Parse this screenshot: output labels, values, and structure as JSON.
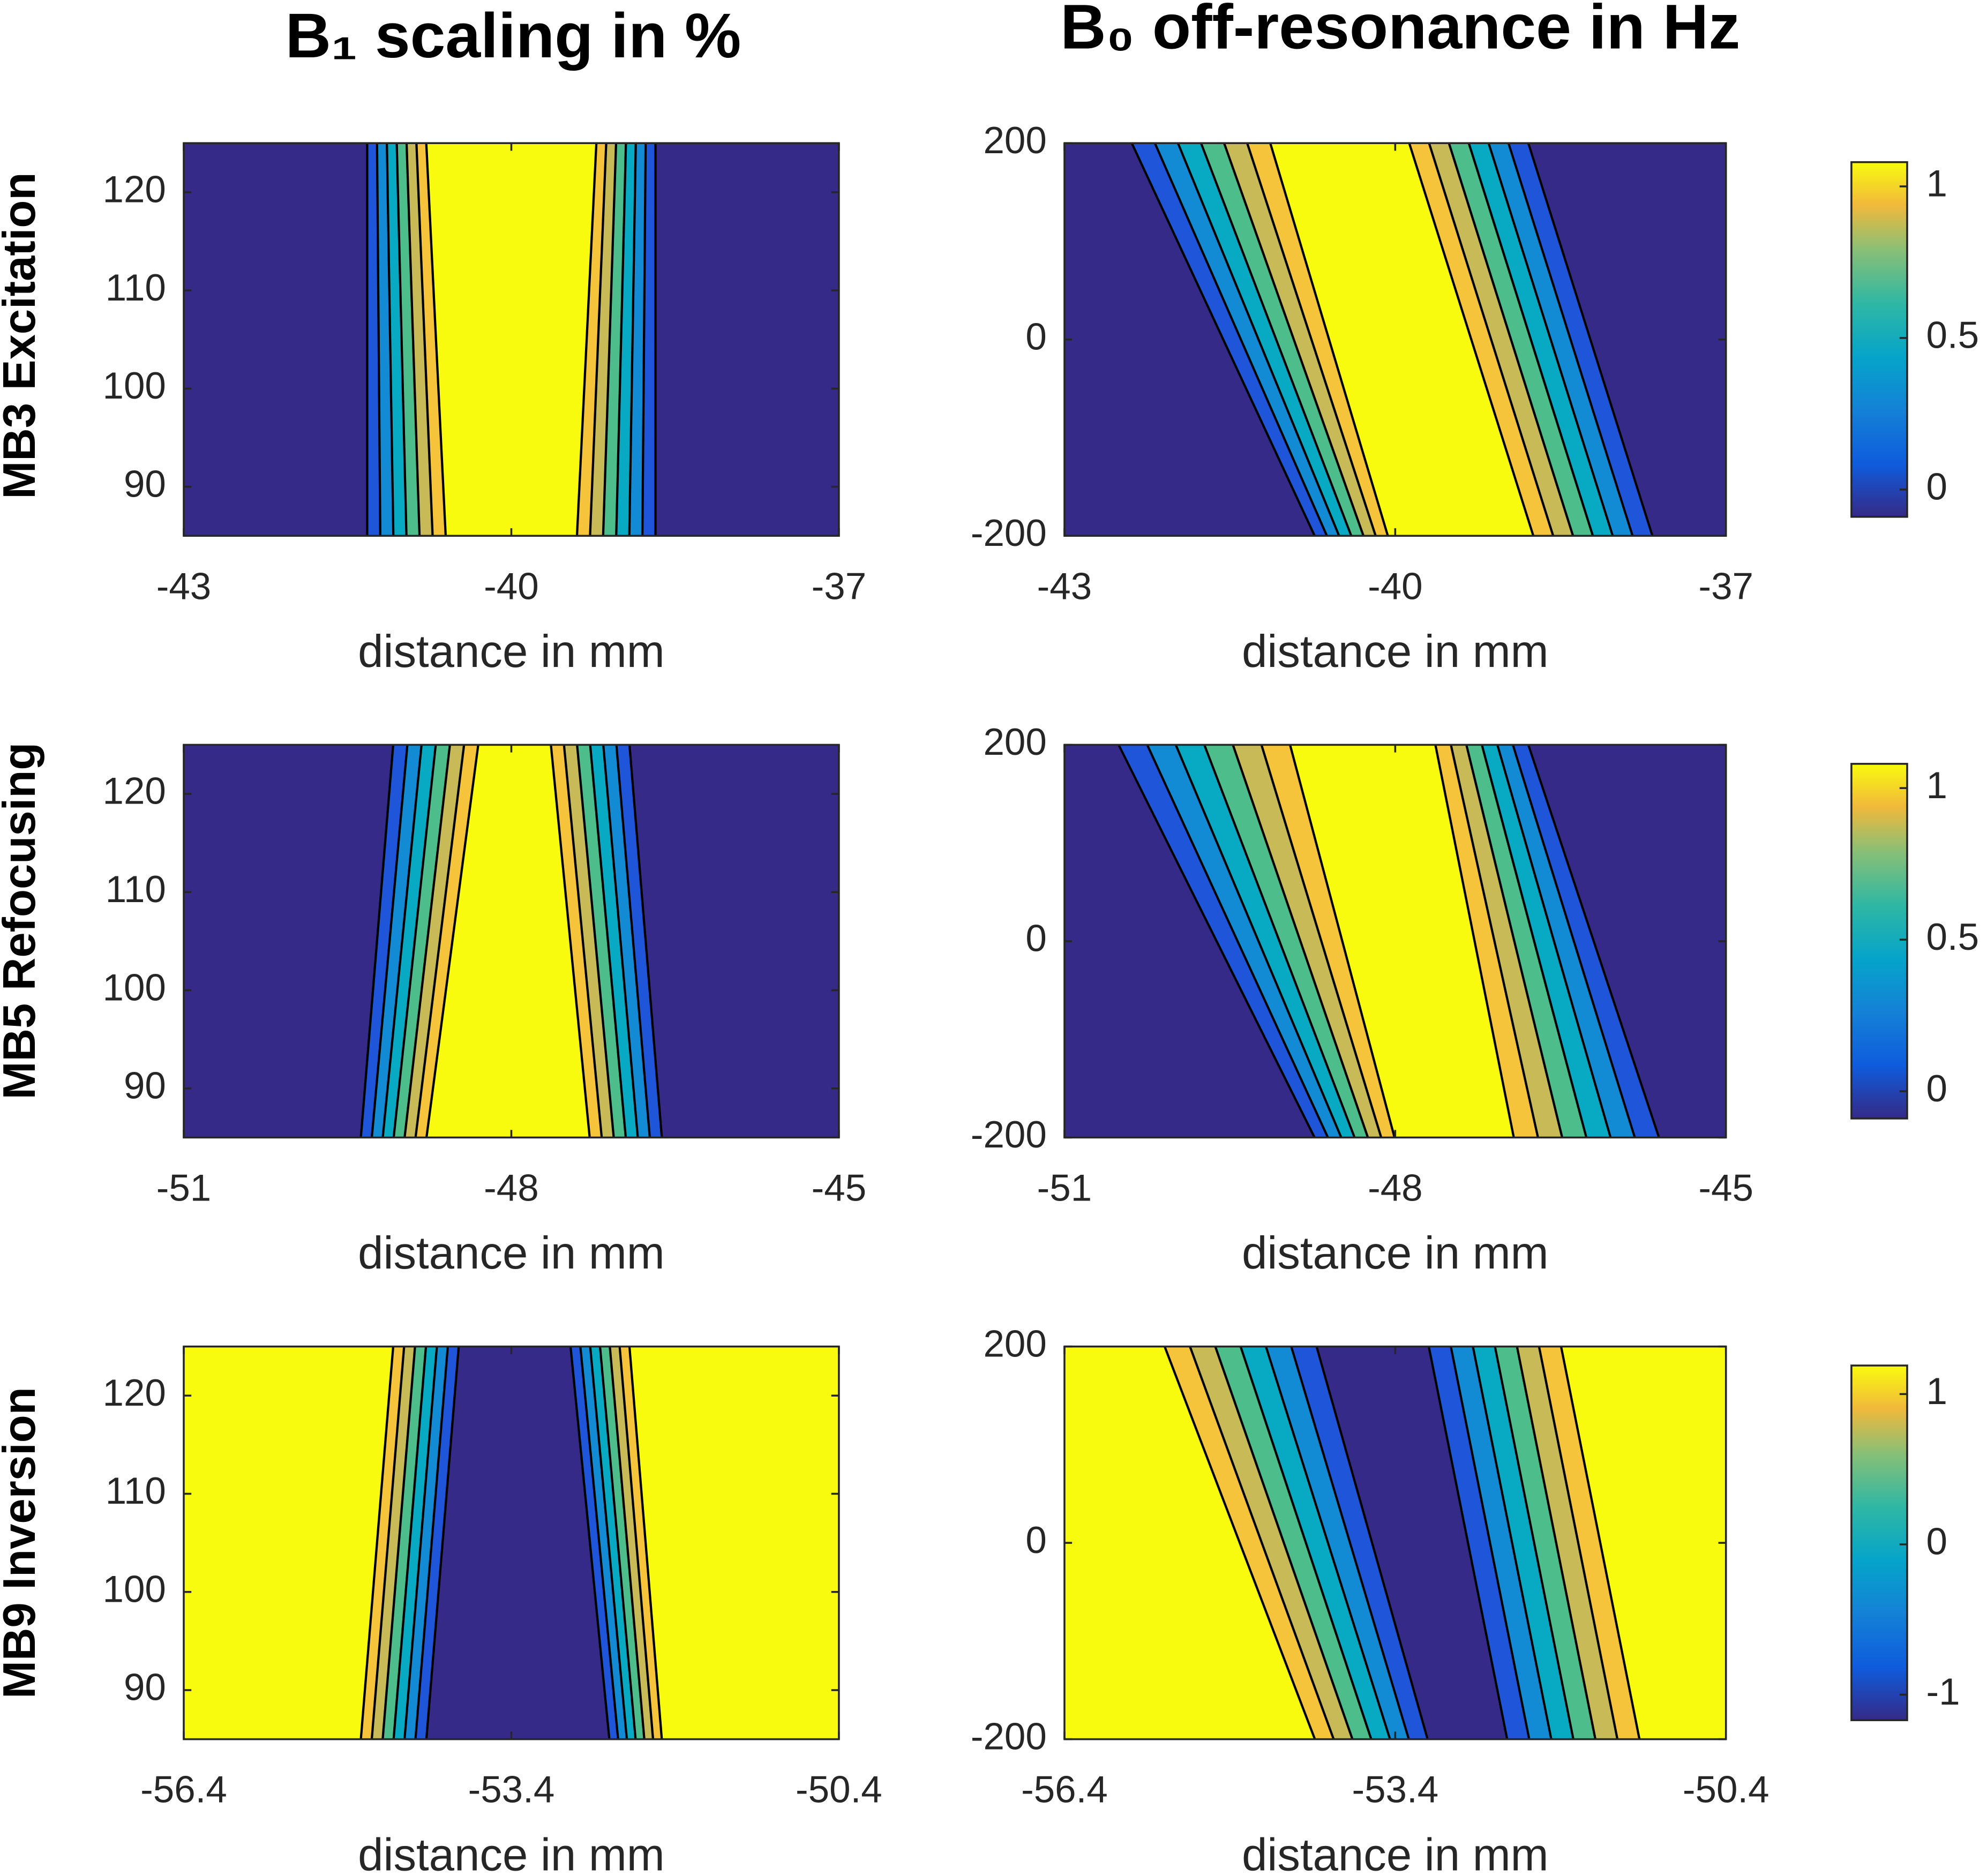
{
  "column_titles": [
    "B₁ scaling in %",
    "B₀ off-resonance in Hz"
  ],
  "row_labels": [
    "MB3 Excitation",
    "MB5 Refocusing",
    "MB9 Inversion"
  ],
  "chart_data": [
    {
      "type": "contour",
      "xlabel": "distance in mm",
      "xlim": [
        -43,
        -37
      ],
      "xticks": [
        -43,
        -40,
        -37
      ],
      "ylim": [
        85,
        125
      ],
      "yticks": [
        90,
        100,
        110,
        120
      ]
    },
    {
      "type": "contour",
      "xlabel": "distance in mm",
      "xlim": [
        -43,
        -37
      ],
      "xticks": [
        -43,
        -40,
        -37
      ],
      "ylim": [
        -200,
        200
      ],
      "yticks": [
        -200,
        0,
        200
      ],
      "colorbar": {
        "lim": [
          -0.09,
          1.08
        ],
        "ticks": [
          0,
          0.5,
          1
        ]
      }
    },
    {
      "type": "contour",
      "xlabel": "distance in mm",
      "xlim": [
        -51,
        -45
      ],
      "xticks": [
        -51,
        -48,
        -45
      ],
      "ylim": [
        85,
        125
      ],
      "yticks": [
        90,
        100,
        110,
        120
      ]
    },
    {
      "type": "contour",
      "xlabel": "distance in mm",
      "xlim": [
        -51,
        -45
      ],
      "xticks": [
        -51,
        -48,
        -45
      ],
      "ylim": [
        -200,
        200
      ],
      "yticks": [
        -200,
        0,
        200
      ],
      "colorbar": {
        "lim": [
          -0.09,
          1.08
        ],
        "ticks": [
          0,
          0.5,
          1
        ]
      }
    },
    {
      "type": "contour",
      "xlabel": "distance in mm",
      "xlim": [
        -56.4,
        -50.4
      ],
      "xticks": [
        -56.4,
        -53.4,
        -50.4
      ],
      "ylim": [
        85,
        125
      ],
      "yticks": [
        90,
        100,
        110,
        120
      ]
    },
    {
      "type": "contour",
      "xlabel": "distance in mm",
      "xlim": [
        -56.4,
        -50.4
      ],
      "xticks": [
        -56.4,
        -53.4,
        -50.4
      ],
      "ylim": [
        -200,
        200
      ],
      "yticks": [
        -200,
        0,
        200
      ],
      "colorbar": {
        "lim": [
          -1.17,
          1.19
        ],
        "ticks": [
          -1,
          0,
          1
        ]
      }
    }
  ]
}
